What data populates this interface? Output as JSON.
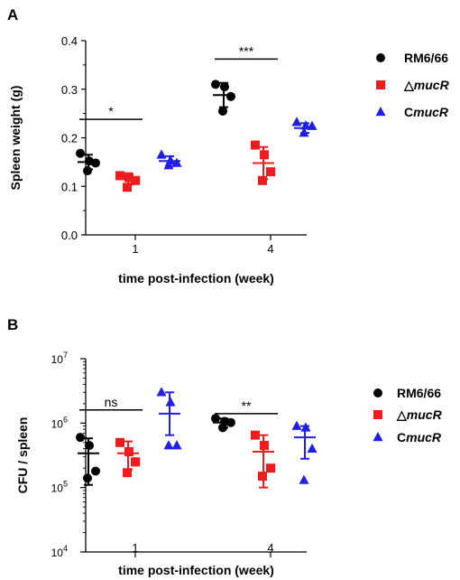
{
  "chart_data": [
    {
      "panel_label": "A",
      "type": "scatter",
      "ylabel": "Spleen weight (g)",
      "xlabel": "time post-infection (week)",
      "categories": [
        "1",
        "4"
      ],
      "y_scale": "linear",
      "ylim": [
        0.0,
        0.4
      ],
      "y_ticks": [
        "0.0",
        "0.1",
        "0.2",
        "0.3",
        "0.4"
      ],
      "series": [
        {
          "name": "RM6/66",
          "name_base": "RM6/66",
          "name_italic": "",
          "marker": "circle",
          "color": "#000000",
          "groups": [
            {
              "category": "1",
              "points": [
                0.168,
                0.152,
                0.148,
                0.132
              ],
              "mean": 0.15,
              "sd": 0.015
            },
            {
              "category": "4",
              "points": [
                0.31,
                0.305,
                0.285,
                0.255
              ],
              "mean": 0.288,
              "sd": 0.025
            }
          ]
        },
        {
          "name": "ΔmucR",
          "name_base": "△",
          "name_italic": "mucR",
          "marker": "square",
          "color": "#ee1c1c",
          "groups": [
            {
              "category": "1",
              "points": [
                0.122,
                0.118,
                0.112,
                0.098
              ],
              "mean": 0.115,
              "sd": 0.012
            },
            {
              "category": "4",
              "points": [
                0.185,
                0.165,
                0.13,
                0.112
              ],
              "mean": 0.148,
              "sd": 0.033
            }
          ]
        },
        {
          "name": "CmucR",
          "name_base": "C",
          "name_italic": "mucR",
          "marker": "triangle",
          "color": "#1f1fe8",
          "groups": [
            {
              "category": "1",
              "points": [
                0.165,
                0.153,
                0.148,
                0.143
              ],
              "mean": 0.152,
              "sd": 0.01
            },
            {
              "category": "4",
              "points": [
                0.232,
                0.225,
                0.224,
                0.21
              ],
              "mean": 0.22,
              "sd": 0.01
            }
          ]
        }
      ],
      "annotations": [
        {
          "category": "1",
          "text": "*",
          "y": 0.238
        },
        {
          "category": "4",
          "text": "***",
          "y": 0.362
        }
      ],
      "legend_position": "right"
    },
    {
      "panel_label": "B",
      "type": "scatter",
      "ylabel": "CFU / spleen",
      "xlabel": "time post-infection (week)",
      "categories": [
        "1",
        "4"
      ],
      "y_scale": "log",
      "ylim": [
        10000,
        10000000
      ],
      "y_ticks": [
        {
          "base": "10",
          "exp": "4"
        },
        {
          "base": "10",
          "exp": "5"
        },
        {
          "base": "10",
          "exp": "6"
        },
        {
          "base": "10",
          "exp": "7"
        }
      ],
      "series": [
        {
          "name": "RM6/66",
          "name_base": "RM6/66",
          "name_italic": "",
          "marker": "circle",
          "color": "#000000",
          "groups": [
            {
              "category": "1",
              "points": [
                600000,
                450000,
                180000,
                140000
              ],
              "mean": 340000,
              "sd_low": 110000,
              "sd_high": 580000
            },
            {
              "category": "4",
              "points": [
                1180000,
                1060000,
                1020000,
                850000
              ],
              "mean": 1020000,
              "sd_low": 850000,
              "sd_high": 1180000
            }
          ]
        },
        {
          "name": "ΔmucR",
          "name_base": "△",
          "name_italic": "mucR",
          "marker": "square",
          "color": "#ee1c1c",
          "groups": [
            {
              "category": "1",
              "points": [
                500000,
                360000,
                250000,
                170000
              ],
              "mean": 340000,
              "sd_low": 190000,
              "sd_high": 520000
            },
            {
              "category": "4",
              "points": [
                650000,
                450000,
                200000,
                150000
              ],
              "mean": 360000,
              "sd_low": 100000,
              "sd_high": 650000
            }
          ]
        },
        {
          "name": "CmucR",
          "name_base": "C",
          "name_italic": "mucR",
          "marker": "triangle",
          "color": "#1f1fe8",
          "groups": [
            {
              "category": "1",
              "points": [
                3000000,
                2100000,
                450000,
                450000
              ],
              "mean": 1400000,
              "sd_low": 650000,
              "sd_high": 3000000
            },
            {
              "category": "4",
              "points": [
                900000,
                850000,
                400000,
                130000
              ],
              "mean": 600000,
              "sd_low": 280000,
              "sd_high": 900000
            }
          ]
        }
      ],
      "annotations": [
        {
          "category": "1",
          "text": "ns",
          "y": 1600000
        },
        {
          "category": "4",
          "text": "**",
          "y": 1400000
        }
      ],
      "legend_position": "right"
    }
  ]
}
